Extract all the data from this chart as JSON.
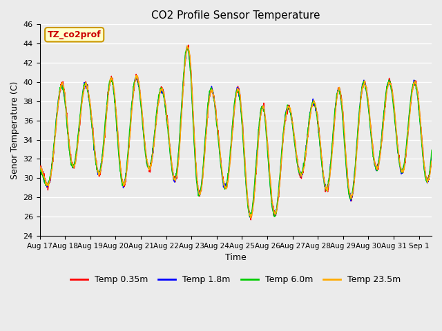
{
  "title": "CO2 Profile Sensor Temperature",
  "ylabel": "Senor Temperature (C)",
  "xlabel": "Time",
  "annotation_text": "TZ_co2prof",
  "annotation_color": "#cc0000",
  "annotation_bg": "#ffffcc",
  "annotation_border": "#cc9900",
  "ylim": [
    24,
    46
  ],
  "legend": [
    {
      "label": "Temp 0.35m",
      "color": "#ff0000"
    },
    {
      "label": "Temp 1.8m",
      "color": "#0000ff"
    },
    {
      "label": "Temp 6.0m",
      "color": "#00cc00"
    },
    {
      "label": "Temp 23.5m",
      "color": "#ffaa00"
    }
  ],
  "plot_bg": "#ebebeb",
  "fig_bg": "#ebebeb",
  "x_tick_labels": [
    "Aug 17",
    "Aug 18",
    "Aug 19",
    "Aug 20",
    "Aug 21",
    "Aug 22",
    "Aug 23",
    "Aug 24",
    "Aug 25",
    "Aug 26",
    "Aug 27",
    "Aug 28",
    "Aug 29",
    "Aug 30",
    "Aug 31",
    "Sep 1"
  ],
  "grid_color": "#ffffff",
  "linewidth": 1.0
}
